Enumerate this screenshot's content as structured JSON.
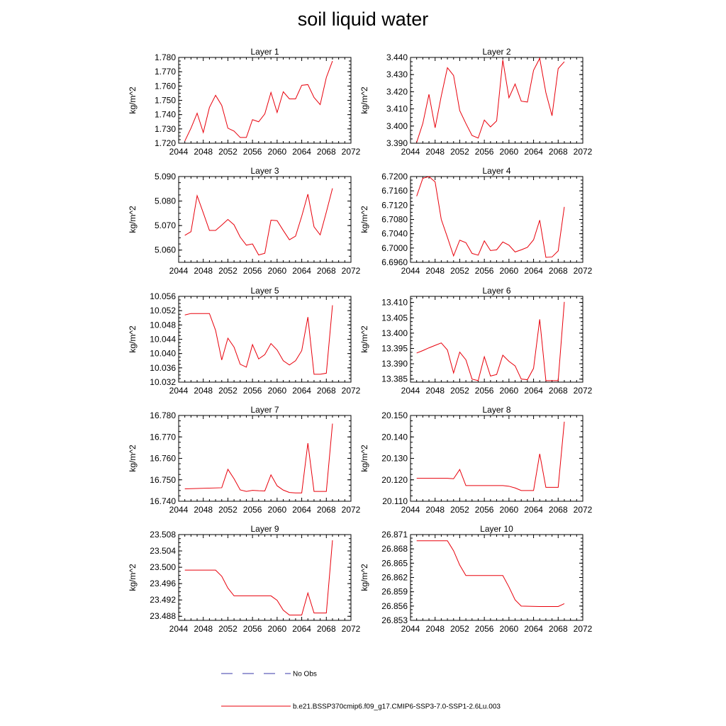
{
  "title": "soil liquid water",
  "legend": {
    "items": [
      {
        "label": "No Obs",
        "style": "dashed",
        "color": "#3a3aa8"
      },
      {
        "label": "b.e21.BSSP370cmip6.f09_g17.CMIP6-SSP3-7.0-SSP1-2.6Lu.003",
        "style": "solid",
        "color": "#e8000b"
      }
    ]
  },
  "chart_data": [
    {
      "type": "line",
      "title": "Layer 1",
      "ylabel": "kg/m^2",
      "xlim": [
        2044,
        2072
      ],
      "xticks": [
        "2044",
        "2048",
        "2052",
        "2056",
        "2060",
        "2064",
        "2068",
        "2072"
      ],
      "ylim": [
        1.72,
        1.78
      ],
      "yticks": [
        "1.720",
        "1.730",
        "1.740",
        "1.750",
        "1.760",
        "1.770",
        "1.780"
      ],
      "series": [
        {
          "color": "#e8000b",
          "x": [
            2045,
            2046,
            2047,
            2048,
            2049,
            2050,
            2051,
            2052,
            2053,
            2054,
            2055,
            2056,
            2057,
            2058,
            2059,
            2060,
            2061,
            2062,
            2063,
            2064,
            2065,
            2066,
            2067,
            2068,
            2069
          ],
          "y": [
            1.7215,
            1.7305,
            1.741,
            1.7275,
            1.745,
            1.7535,
            1.7465,
            1.7305,
            1.7285,
            1.724,
            1.724,
            1.7365,
            1.735,
            1.7405,
            1.7555,
            1.7415,
            1.756,
            1.751,
            1.751,
            1.7605,
            1.761,
            1.752,
            1.747,
            1.766,
            1.7775
          ]
        }
      ]
    },
    {
      "type": "line",
      "title": "Layer 2",
      "ylabel": "kg/m^2",
      "xlim": [
        2044,
        2072
      ],
      "xticks": [
        "2044",
        "2048",
        "2052",
        "2056",
        "2060",
        "2064",
        "2068",
        "2072"
      ],
      "ylim": [
        3.39,
        3.44
      ],
      "yticks": [
        "3.390",
        "3.400",
        "3.410",
        "3.420",
        "3.430",
        "3.440"
      ],
      "series": [
        {
          "color": "#e8000b",
          "x": [
            2045,
            2046,
            2047,
            2048,
            2049,
            2050,
            2051,
            2052,
            2053,
            2054,
            2055,
            2056,
            2057,
            2058,
            2059,
            2060,
            2061,
            2062,
            2063,
            2064,
            2065,
            2066,
            2067,
            2068,
            2069
          ],
          "y": [
            3.3905,
            3.4015,
            3.4185,
            3.399,
            3.4175,
            3.434,
            3.4295,
            3.409,
            3.4015,
            3.3945,
            3.393,
            3.4035,
            3.3995,
            3.403,
            3.4385,
            3.4165,
            3.4245,
            3.4145,
            3.414,
            3.4325,
            3.4395,
            3.4195,
            3.406,
            3.4335,
            3.4375
          ]
        }
      ]
    },
    {
      "type": "line",
      "title": "Layer 3",
      "ylabel": "kg/m^2",
      "xlim": [
        2044,
        2072
      ],
      "xticks": [
        "2044",
        "2048",
        "2052",
        "2056",
        "2060",
        "2064",
        "2068",
        "2072"
      ],
      "ylim": [
        5.055,
        5.09
      ],
      "yticks": [
        "5.060",
        "5.070",
        "5.080",
        "5.090"
      ],
      "series": [
        {
          "color": "#e8000b",
          "x": [
            2045,
            2046,
            2047,
            2048,
            2049,
            2050,
            2051,
            2052,
            2053,
            2054,
            2055,
            2056,
            2057,
            2058,
            2059,
            2060,
            2061,
            2062,
            2063,
            2064,
            2065,
            2066,
            2067,
            2068,
            2069
          ],
          "y": [
            5.066,
            5.0675,
            5.0822,
            5.0752,
            5.068,
            5.068,
            5.0702,
            5.0725,
            5.0703,
            5.0653,
            5.062,
            5.0625,
            5.058,
            5.0587,
            5.0722,
            5.072,
            5.068,
            5.0642,
            5.0657,
            5.0738,
            5.0828,
            5.0695,
            5.0662,
            5.0755,
            5.0852
          ]
        }
      ]
    },
    {
      "type": "line",
      "title": "Layer 4",
      "ylabel": "kg/m^2",
      "xlim": [
        2044,
        2072
      ],
      "xticks": [
        "2044",
        "2048",
        "2052",
        "2056",
        "2060",
        "2064",
        "2068",
        "2072"
      ],
      "ylim": [
        6.696,
        6.72
      ],
      "yticks": [
        "6.6960",
        "6.7000",
        "6.7040",
        "6.7080",
        "6.7120",
        "6.7160",
        "6.7200"
      ],
      "series": [
        {
          "color": "#e8000b",
          "x": [
            2045,
            2046,
            2047,
            2048,
            2049,
            2050,
            2051,
            2052,
            2053,
            2054,
            2055,
            2056,
            2057,
            2058,
            2059,
            2060,
            2061,
            2062,
            2063,
            2064,
            2065,
            2066,
            2067,
            2068,
            2069
          ],
          "y": [
            6.7145,
            6.7195,
            6.72,
            6.7185,
            6.708,
            6.703,
            6.6978,
            6.7022,
            6.7015,
            6.6985,
            6.698,
            6.702,
            6.6993,
            6.6995,
            6.7017,
            6.7008,
            6.6989,
            6.6995,
            6.7002,
            6.7023,
            6.7078,
            6.6974,
            6.6975,
            6.6992,
            6.7115
          ]
        }
      ]
    },
    {
      "type": "line",
      "title": "Layer 5",
      "ylabel": "kg/m^2",
      "xlim": [
        2044,
        2072
      ],
      "xticks": [
        "2044",
        "2048",
        "2052",
        "2056",
        "2060",
        "2064",
        "2068",
        "2072"
      ],
      "ylim": [
        10.032,
        10.056
      ],
      "yticks": [
        "10.032",
        "10.036",
        "10.040",
        "10.044",
        "10.048",
        "10.052",
        "10.056"
      ],
      "series": [
        {
          "color": "#e8000b",
          "x": [
            2045,
            2046,
            2047,
            2048,
            2049,
            2050,
            2051,
            2052,
            2053,
            2054,
            2055,
            2056,
            2057,
            2058,
            2059,
            2060,
            2061,
            2062,
            2063,
            2064,
            2065,
            2066,
            2067,
            2068,
            2069
          ],
          "y": [
            10.0508,
            10.0512,
            10.0512,
            10.0512,
            10.0512,
            10.0465,
            10.0382,
            10.0443,
            10.0418,
            10.037,
            10.0362,
            10.0425,
            10.0385,
            10.0397,
            10.0428,
            10.041,
            10.038,
            10.0368,
            10.038,
            10.0408,
            10.0502,
            10.0342,
            10.0342,
            10.0345,
            10.0535
          ]
        }
      ]
    },
    {
      "type": "line",
      "title": "Layer 6",
      "ylabel": "kg/m^2",
      "xlim": [
        2044,
        2072
      ],
      "xticks": [
        "2044",
        "2048",
        "2052",
        "2056",
        "2060",
        "2064",
        "2068",
        "2072"
      ],
      "ylim": [
        13.384,
        13.412
      ],
      "yticks": [
        "13.385",
        "13.390",
        "13.395",
        "13.400",
        "13.405",
        "13.410"
      ],
      "series": [
        {
          "color": "#e8000b",
          "x": [
            2045,
            2046,
            2047,
            2048,
            2049,
            2050,
            2051,
            2052,
            2053,
            2054,
            2055,
            2056,
            2057,
            2058,
            2059,
            2060,
            2061,
            2062,
            2063,
            2064,
            2065,
            2066,
            2067,
            2068,
            2069
          ],
          "y": [
            13.3935,
            13.3943,
            13.3952,
            13.396,
            13.3968,
            13.3945,
            13.387,
            13.3938,
            13.3913,
            13.385,
            13.3845,
            13.3923,
            13.386,
            13.3865,
            13.3928,
            13.3908,
            13.3893,
            13.385,
            13.3848,
            13.3885,
            13.4045,
            13.3845,
            13.3845,
            13.3845,
            13.4102
          ]
        }
      ]
    },
    {
      "type": "line",
      "title": "Layer 7",
      "ylabel": "kg/m^2",
      "xlim": [
        2044,
        2072
      ],
      "xticks": [
        "2044",
        "2048",
        "2052",
        "2056",
        "2060",
        "2064",
        "2068",
        "2072"
      ],
      "ylim": [
        16.74,
        16.78
      ],
      "yticks": [
        "16.740",
        "16.750",
        "16.760",
        "16.770",
        "16.780"
      ],
      "series": [
        {
          "color": "#e8000b",
          "x": [
            2045,
            2051,
            2052,
            2053,
            2054,
            2055,
            2056,
            2057,
            2058,
            2059,
            2060,
            2061,
            2062,
            2063,
            2064,
            2065,
            2066,
            2067,
            2068,
            2069
          ],
          "y": [
            16.7458,
            16.7463,
            16.7549,
            16.7505,
            16.7453,
            16.7446,
            16.7451,
            16.7449,
            16.7448,
            16.7523,
            16.7472,
            16.7452,
            16.7441,
            16.7439,
            16.7439,
            16.7671,
            16.7446,
            16.7446,
            16.7446,
            16.7762
          ]
        }
      ]
    },
    {
      "type": "line",
      "title": "Layer 8",
      "ylabel": "kg/m^2",
      "xlim": [
        2044,
        2072
      ],
      "xticks": [
        "2044",
        "2048",
        "2052",
        "2056",
        "2060",
        "2064",
        "2068",
        "2072"
      ],
      "ylim": [
        20.11,
        20.15
      ],
      "yticks": [
        "20.110",
        "20.120",
        "20.130",
        "20.140",
        "20.150"
      ],
      "series": [
        {
          "color": "#e8000b",
          "x": [
            2045,
            2050,
            2051,
            2052,
            2053,
            2054,
            2055,
            2056,
            2057,
            2058,
            2059,
            2060,
            2061,
            2062,
            2063,
            2064,
            2065,
            2066,
            2067,
            2068,
            2069
          ],
          "y": [
            20.1207,
            20.1207,
            20.1205,
            20.1248,
            20.1173,
            20.1173,
            20.1173,
            20.1173,
            20.1173,
            20.1173,
            20.1173,
            20.117,
            20.1162,
            20.115,
            20.115,
            20.115,
            20.1321,
            20.1165,
            20.1165,
            20.1165,
            20.1471
          ]
        }
      ]
    },
    {
      "type": "line",
      "title": "Layer 9",
      "ylabel": "kg/m^2",
      "xlim": [
        2044,
        2072
      ],
      "xticks": [
        "2044",
        "2048",
        "2052",
        "2056",
        "2060",
        "2064",
        "2068",
        "2072"
      ],
      "ylim": [
        23.487,
        23.508
      ],
      "yticks": [
        "23.488",
        "23.492",
        "23.496",
        "23.500",
        "23.504",
        "23.508"
      ],
      "series": [
        {
          "color": "#e8000b",
          "x": [
            2045,
            2050,
            2051,
            2052,
            2053,
            2054,
            2055,
            2056,
            2057,
            2058,
            2059,
            2060,
            2061,
            2062,
            2063,
            2064,
            2065,
            2066,
            2067,
            2068,
            2069
          ],
          "y": [
            23.4993,
            23.4993,
            23.4978,
            23.4949,
            23.493,
            23.493,
            23.493,
            23.493,
            23.493,
            23.493,
            23.493,
            23.4919,
            23.4895,
            23.4883,
            23.4883,
            23.4883,
            23.4937,
            23.4888,
            23.4888,
            23.4888,
            23.5066
          ]
        }
      ]
    },
    {
      "type": "line",
      "title": "Layer 10",
      "ylabel": "kg/m^2",
      "xlim": [
        2044,
        2072
      ],
      "xticks": [
        "2044",
        "2048",
        "2052",
        "2056",
        "2060",
        "2064",
        "2068",
        "2072"
      ],
      "ylim": [
        26.853,
        26.871
      ],
      "yticks": [
        "26.853",
        "26.856",
        "26.859",
        "26.862",
        "26.865",
        "26.868",
        "26.871"
      ],
      "series": [
        {
          "color": "#e8000b",
          "x": [
            2045,
            2050,
            2051,
            2052,
            2053,
            2059,
            2060,
            2061,
            2062,
            2065,
            2068,
            2069
          ],
          "y": [
            26.8697,
            26.8697,
            26.8676,
            26.8646,
            26.8624,
            26.8624,
            26.86,
            26.8573,
            26.856,
            26.8559,
            26.8559,
            26.8565
          ]
        }
      ]
    }
  ]
}
